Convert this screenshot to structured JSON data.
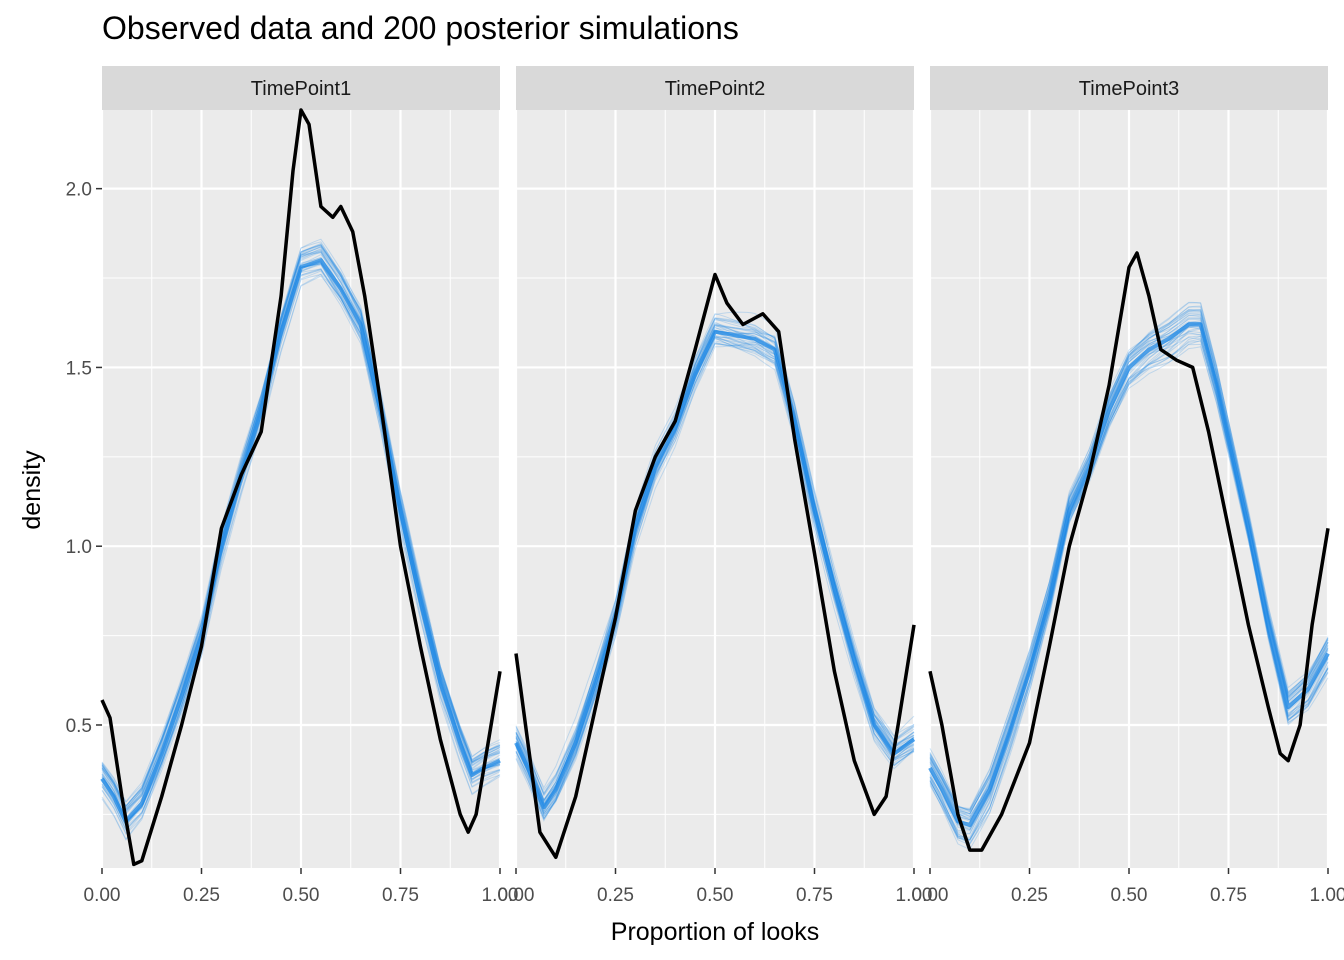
{
  "chart_data": {
    "type": "line",
    "title": "Observed data and 200 posterior simulations",
    "xlabel": "Proportion of looks",
    "ylabel": "density",
    "xlim": [
      0,
      1
    ],
    "ylim": [
      0.1,
      2.22
    ],
    "x_ticks": [
      0,
      0.25,
      0.5,
      0.75,
      1
    ],
    "x_tick_labels": [
      "0.00",
      "0.25",
      "0.50",
      "0.75",
      "1.00"
    ],
    "y_ticks": [
      0.5,
      1.0,
      1.5,
      2.0
    ],
    "y_tick_labels": [
      "0.5",
      "1.0",
      "1.5",
      "2.0"
    ],
    "grid": true,
    "legend": "none",
    "colors": {
      "panel_bg": "#EBEBEB",
      "strip_bg": "#D9D9D9",
      "grid": "#FFFFFF",
      "posterior": "#1E88E5",
      "observed": "#000000"
    },
    "facets": [
      {
        "label": "TimePoint1",
        "observed": {
          "x": [
            0,
            0.02,
            0.05,
            0.08,
            0.1,
            0.15,
            0.2,
            0.25,
            0.3,
            0.35,
            0.4,
            0.45,
            0.48,
            0.5,
            0.52,
            0.55,
            0.58,
            0.6,
            0.63,
            0.66,
            0.7,
            0.75,
            0.8,
            0.85,
            0.9,
            0.92,
            0.94,
            0.97,
            1.0
          ],
          "y": [
            0.57,
            0.52,
            0.3,
            0.11,
            0.12,
            0.3,
            0.5,
            0.72,
            1.05,
            1.2,
            1.32,
            1.7,
            2.05,
            2.22,
            2.18,
            1.95,
            1.92,
            1.95,
            1.88,
            1.7,
            1.4,
            1.0,
            0.72,
            0.46,
            0.25,
            0.2,
            0.25,
            0.45,
            0.65
          ]
        },
        "posterior_mean": {
          "x": [
            0,
            0.03,
            0.06,
            0.1,
            0.15,
            0.2,
            0.25,
            0.3,
            0.35,
            0.4,
            0.45,
            0.5,
            0.55,
            0.6,
            0.65,
            0.7,
            0.75,
            0.8,
            0.85,
            0.9,
            0.93,
            0.96,
            1.0
          ],
          "y": [
            0.35,
            0.3,
            0.23,
            0.28,
            0.42,
            0.58,
            0.75,
            1.0,
            1.2,
            1.38,
            1.6,
            1.78,
            1.8,
            1.72,
            1.62,
            1.38,
            1.1,
            0.85,
            0.62,
            0.45,
            0.36,
            0.38,
            0.4
          ]
        }
      },
      {
        "label": "TimePoint2",
        "observed": {
          "x": [
            0,
            0.03,
            0.06,
            0.1,
            0.15,
            0.2,
            0.25,
            0.3,
            0.35,
            0.4,
            0.45,
            0.5,
            0.53,
            0.57,
            0.62,
            0.66,
            0.7,
            0.75,
            0.8,
            0.85,
            0.9,
            0.93,
            0.96,
            1.0
          ],
          "y": [
            0.7,
            0.45,
            0.2,
            0.13,
            0.3,
            0.55,
            0.8,
            1.1,
            1.25,
            1.35,
            1.55,
            1.76,
            1.68,
            1.62,
            1.65,
            1.6,
            1.3,
            0.98,
            0.65,
            0.4,
            0.25,
            0.3,
            0.5,
            0.78
          ]
        },
        "posterior_mean": {
          "x": [
            0,
            0.03,
            0.07,
            0.1,
            0.15,
            0.2,
            0.25,
            0.3,
            0.35,
            0.4,
            0.45,
            0.5,
            0.55,
            0.6,
            0.65,
            0.7,
            0.75,
            0.8,
            0.85,
            0.9,
            0.95,
            1.0
          ],
          "y": [
            0.45,
            0.38,
            0.27,
            0.32,
            0.45,
            0.62,
            0.8,
            1.05,
            1.22,
            1.33,
            1.48,
            1.6,
            1.59,
            1.58,
            1.55,
            1.35,
            1.1,
            0.88,
            0.68,
            0.5,
            0.42,
            0.46
          ]
        }
      },
      {
        "label": "TimePoint3",
        "observed": {
          "x": [
            0,
            0.03,
            0.07,
            0.1,
            0.13,
            0.18,
            0.25,
            0.3,
            0.35,
            0.4,
            0.45,
            0.5,
            0.52,
            0.55,
            0.58,
            0.62,
            0.66,
            0.7,
            0.75,
            0.8,
            0.85,
            0.88,
            0.9,
            0.93,
            0.96,
            1.0
          ],
          "y": [
            0.65,
            0.5,
            0.25,
            0.15,
            0.15,
            0.25,
            0.45,
            0.72,
            1.0,
            1.2,
            1.45,
            1.78,
            1.82,
            1.7,
            1.55,
            1.52,
            1.5,
            1.32,
            1.05,
            0.78,
            0.55,
            0.42,
            0.4,
            0.5,
            0.78,
            1.05
          ]
        },
        "posterior_mean": {
          "x": [
            0,
            0.03,
            0.07,
            0.1,
            0.15,
            0.2,
            0.25,
            0.3,
            0.35,
            0.4,
            0.45,
            0.5,
            0.55,
            0.6,
            0.65,
            0.68,
            0.72,
            0.76,
            0.8,
            0.85,
            0.9,
            0.95,
            1.0
          ],
          "y": [
            0.38,
            0.32,
            0.23,
            0.22,
            0.32,
            0.48,
            0.65,
            0.85,
            1.1,
            1.22,
            1.38,
            1.5,
            1.55,
            1.58,
            1.62,
            1.62,
            1.45,
            1.25,
            1.05,
            0.78,
            0.55,
            0.6,
            0.7
          ]
        }
      }
    ]
  }
}
